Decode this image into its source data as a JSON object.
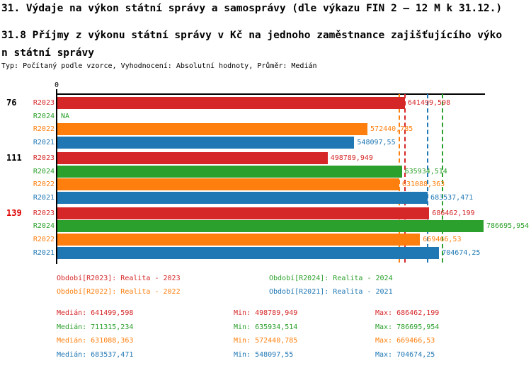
{
  "title1": "31. Výdaje na výkon státní správy a samosprávy (dle výkazu FIN 2 – 12 M k 31.12.)",
  "title2_line1": "31.8 Příjmy z výkonu státní správy v Kč na jednoho zaměstnance zajišťujícího výko",
  "title2_line2": "n státní správy",
  "subtitle": "Typ: Počítaný podle vzorce, Vyhodnocení: Absolutní hodnoty, Průměr: Medián",
  "colors": {
    "R2023": "#d62728",
    "R2024": "#2ca02c",
    "R2022": "#ff7f0e",
    "R2021": "#1f77b4",
    "highlight": "#dd0000",
    "axis": "#000000",
    "text": "#000000",
    "background": "#ffffff"
  },
  "chart_data": {
    "type": "bar",
    "orientation": "horizontal",
    "value_axis": {
      "origin_label": "0",
      "max_estimate": 790000,
      "grid": false
    },
    "series_order": [
      "R2023",
      "R2024",
      "R2022",
      "R2021"
    ],
    "groups": [
      {
        "label": "76",
        "highlighted": false,
        "bars": [
          {
            "series": "R2023",
            "value": 641499.598,
            "display": "641499,598"
          },
          {
            "series": "R2024",
            "value": null,
            "display": "NA"
          },
          {
            "series": "R2022",
            "value": 572440.785,
            "display": "572440,785"
          },
          {
            "series": "R2021",
            "value": 548097.55,
            "display": "548097,55"
          }
        ]
      },
      {
        "label": "111",
        "highlighted": false,
        "bars": [
          {
            "series": "R2023",
            "value": 498789.949,
            "display": "498789,949"
          },
          {
            "series": "R2024",
            "value": 635934.514,
            "display": "635934,514"
          },
          {
            "series": "R2022",
            "value": 631088.363,
            "display": "631088,363"
          },
          {
            "series": "R2021",
            "value": 683537.471,
            "display": "683537,471"
          }
        ]
      },
      {
        "label": "139",
        "highlighted": true,
        "bars": [
          {
            "series": "R2023",
            "value": 686462.199,
            "display": "686462,199"
          },
          {
            "series": "R2024",
            "value": 786695.954,
            "display": "786695,954"
          },
          {
            "series": "R2022",
            "value": 669466.53,
            "display": "669466,53"
          },
          {
            "series": "R2021",
            "value": 704674.25,
            "display": "704674,25"
          }
        ]
      }
    ],
    "median_lines": [
      {
        "series": "R2022",
        "value": 631088.363
      },
      {
        "series": "R2023",
        "value": 641499.598
      },
      {
        "series": "R2021",
        "value": 683537.471
      },
      {
        "series": "R2024",
        "value": 711315.234
      }
    ]
  },
  "legend": {
    "items": [
      {
        "series": "R2023",
        "label": "Období[R2023]: Realita - 2023"
      },
      {
        "series": "R2024",
        "label": "Období[R2024]: Realita - 2024"
      },
      {
        "series": "R2022",
        "label": "Období[R2022]: Realita - 2022"
      },
      {
        "series": "R2021",
        "label": "Období[R2021]: Realita - 2021"
      }
    ]
  },
  "stats": {
    "labels": {
      "median": "Medián:",
      "min": "Min:",
      "max": "Max:"
    },
    "rows": [
      {
        "series": "R2023",
        "median": "641499,598",
        "min": "498789,949",
        "max": "686462,199"
      },
      {
        "series": "R2024",
        "median": "711315,234",
        "min": "635934,514",
        "max": "786695,954"
      },
      {
        "series": "R2022",
        "median": "631088,363",
        "min": "572440,785",
        "max": "669466,53"
      },
      {
        "series": "R2021",
        "median": "683537,471",
        "min": "548097,55",
        "max": "704674,25"
      }
    ]
  }
}
